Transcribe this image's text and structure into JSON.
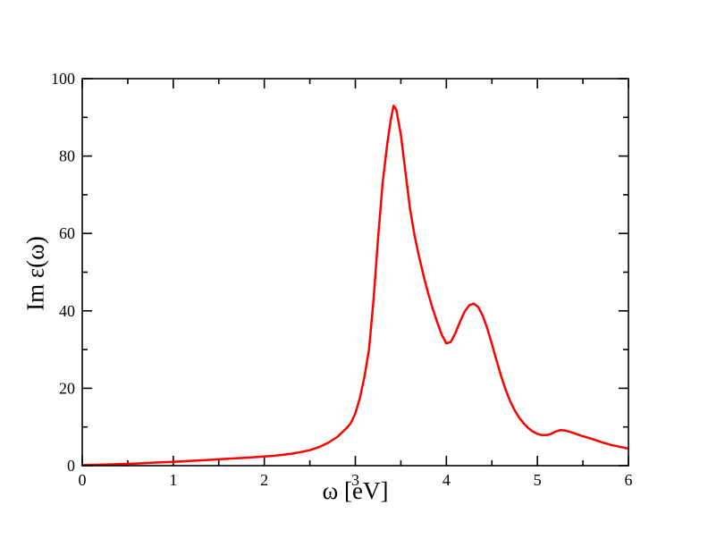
{
  "figure": {
    "background": "#ffffff",
    "frame_color": "#000000",
    "text_color": "#000000"
  },
  "chart_data": {
    "type": "line",
    "title": "",
    "xlabel": "ω [eV]",
    "ylabel": "Im ε(ω)",
    "xlim": [
      0,
      6
    ],
    "ylim": [
      0,
      100
    ],
    "x_major_ticks": [
      0,
      1,
      2,
      3,
      4,
      5,
      6
    ],
    "x_minor_step": 0.5,
    "y_major_ticks": [
      0,
      20,
      40,
      60,
      80,
      100
    ],
    "y_minor_step": 10,
    "grid": false,
    "legend": null,
    "frame_color": "#000000",
    "tick_style": "inward-mirrored",
    "series": [
      {
        "name": "Im eps(omega) spectrum",
        "color": "#ff0000",
        "x": [
          0.0,
          0.2,
          0.4,
          0.6,
          0.8,
          1.0,
          1.2,
          1.4,
          1.6,
          1.8,
          2.0,
          2.1,
          2.2,
          2.3,
          2.4,
          2.5,
          2.6,
          2.7,
          2.8,
          2.9,
          2.95,
          3.0,
          3.05,
          3.1,
          3.15,
          3.2,
          3.25,
          3.3,
          3.35,
          3.39,
          3.42,
          3.45,
          3.5,
          3.55,
          3.6,
          3.65,
          3.7,
          3.75,
          3.8,
          3.85,
          3.9,
          3.95,
          4.0,
          4.05,
          4.1,
          4.15,
          4.2,
          4.25,
          4.3,
          4.35,
          4.4,
          4.45,
          4.5,
          4.55,
          4.6,
          4.65,
          4.7,
          4.75,
          4.8,
          4.85,
          4.9,
          4.95,
          5.0,
          5.05,
          5.1,
          5.15,
          5.2,
          5.25,
          5.3,
          5.35,
          5.4,
          5.45,
          5.5,
          5.6,
          5.7,
          5.8,
          5.9,
          6.0
        ],
        "y": [
          0.15,
          0.25,
          0.4,
          0.55,
          0.8,
          1.0,
          1.25,
          1.5,
          1.8,
          2.05,
          2.35,
          2.55,
          2.8,
          3.1,
          3.5,
          4.0,
          4.8,
          5.9,
          7.4,
          9.6,
          11.0,
          13.5,
          17.5,
          23.0,
          30.0,
          43.0,
          59.0,
          73.0,
          83.0,
          89.5,
          93.0,
          92.0,
          85.5,
          76.0,
          66.5,
          59.5,
          54.0,
          49.0,
          44.5,
          40.5,
          37.0,
          33.8,
          31.6,
          32.0,
          34.3,
          37.2,
          39.8,
          41.4,
          41.9,
          41.0,
          38.7,
          35.4,
          31.4,
          27.3,
          23.3,
          19.7,
          16.7,
          14.3,
          12.4,
          10.9,
          9.7,
          8.8,
          8.2,
          7.9,
          7.9,
          8.2,
          8.8,
          9.2,
          9.1,
          8.8,
          8.4,
          8.0,
          7.6,
          6.9,
          6.1,
          5.4,
          4.9,
          4.4
        ]
      }
    ]
  }
}
